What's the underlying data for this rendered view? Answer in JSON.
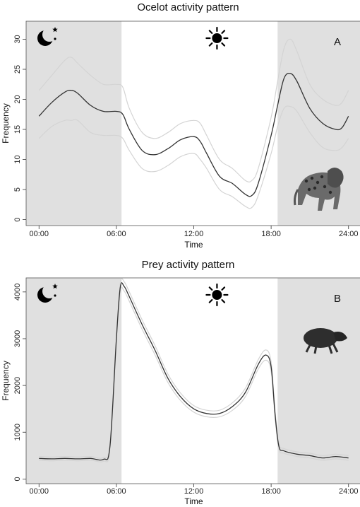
{
  "chart_data": [
    {
      "type": "line",
      "panel_label": "A",
      "title": "Ocelot activity pattern",
      "xlabel": "Time",
      "ylabel": "Frequency",
      "xlim": [
        -1,
        25
      ],
      "ylim": [
        -1,
        33
      ],
      "x_ticks": [
        0,
        6,
        12,
        18,
        24
      ],
      "x_tick_labels": [
        "00:00",
        "06:00",
        "12:00",
        "18:00",
        "24:00"
      ],
      "y_ticks": [
        0,
        5,
        10,
        15,
        20,
        25,
        30
      ],
      "y_tick_labels": [
        "0",
        "5",
        "10",
        "15",
        "20",
        "25",
        "30"
      ],
      "night_periods": [
        [
          -1,
          6.4
        ],
        [
          18.5,
          25
        ]
      ],
      "icons": [
        "moon-stars-icon",
        "sun-icon",
        "ocelot-image"
      ],
      "colors": {
        "night_shade": "#e0e0e0",
        "line": "#333333",
        "ci": "#d4d4d4"
      },
      "series": [
        {
          "role": "estimate",
          "x": [
            0,
            1,
            2,
            2.5,
            3,
            4,
            5,
            6,
            6.5,
            7,
            8,
            9,
            10,
            11,
            12,
            12.5,
            13,
            14,
            15,
            16,
            16.5,
            17,
            18,
            18.5,
            19,
            19.5,
            20,
            21,
            22,
            23,
            23.5,
            24
          ],
          "values": [
            17.2,
            19.5,
            21.2,
            21.5,
            21,
            19,
            18,
            18,
            17.5,
            15,
            11.5,
            10.8,
            11.8,
            13.3,
            13.8,
            13,
            11,
            7.2,
            6,
            4.2,
            4,
            6,
            14,
            19,
            23.5,
            24.3,
            23,
            18.5,
            16,
            15,
            15.3,
            17.2
          ]
        },
        {
          "role": "upper",
          "x": [
            0,
            1,
            2,
            2.5,
            3,
            4,
            5,
            6,
            6.5,
            7,
            8,
            9,
            10,
            11,
            12,
            12.5,
            13,
            14,
            15,
            16,
            16.5,
            17,
            18,
            18.5,
            19,
            19.5,
            20,
            21,
            22,
            23,
            23.5,
            24
          ],
          "values": [
            21.5,
            24,
            26.5,
            27,
            26,
            24,
            22.5,
            22.5,
            22,
            18.5,
            14.5,
            13.5,
            14.5,
            16,
            16.5,
            16,
            14,
            10,
            8.5,
            6.5,
            6.5,
            8.5,
            17,
            23,
            28.5,
            30,
            28,
            22.5,
            20,
            19,
            19.5,
            21.5
          ]
        },
        {
          "role": "lower",
          "x": [
            0,
            1,
            2,
            2.5,
            3,
            4,
            5,
            6,
            6.5,
            7,
            8,
            9,
            10,
            11,
            12,
            12.5,
            13,
            14,
            15,
            16,
            16.5,
            17,
            18,
            18.5,
            19,
            19.5,
            20,
            21,
            22,
            23,
            23.5,
            24
          ],
          "values": [
            13.5,
            15.5,
            16.5,
            16.5,
            16.5,
            14.5,
            14,
            14,
            13.5,
            11.5,
            8.5,
            8,
            9,
            10.5,
            11,
            10,
            8.5,
            5,
            3.8,
            2.2,
            2,
            4,
            11,
            15.5,
            18.5,
            18.8,
            18,
            14.5,
            12,
            11.5,
            12,
            13.5
          ]
        }
      ]
    },
    {
      "type": "line",
      "panel_label": "B",
      "title": "Prey activity pattern",
      "xlabel": "Time",
      "ylabel": "Frequency",
      "xlim": [
        -1,
        25
      ],
      "ylim": [
        -100,
        4300
      ],
      "x_ticks": [
        0,
        6,
        12,
        18,
        24
      ],
      "x_tick_labels": [
        "00:00",
        "06:00",
        "12:00",
        "18:00",
        "24:00"
      ],
      "y_ticks": [
        0,
        1000,
        2000,
        3000,
        4000
      ],
      "y_tick_labels": [
        "0",
        "1000",
        "2000",
        "3000",
        "4000"
      ],
      "night_periods": [
        [
          -1,
          6.4
        ],
        [
          18.5,
          25
        ]
      ],
      "icons": [
        "moon-stars-icon",
        "sun-icon",
        "prey-image"
      ],
      "colors": {
        "night_shade": "#e0e0e0",
        "line": "#333333",
        "ci": "#d4d4d4"
      },
      "series": [
        {
          "role": "estimate",
          "x": [
            0,
            1,
            2,
            3,
            4,
            5,
            5.5,
            6,
            6.3,
            6.6,
            7,
            8,
            9,
            10,
            11,
            12,
            13,
            14,
            15,
            16,
            17,
            17.6,
            18,
            18.3,
            18.6,
            19,
            20,
            21,
            22,
            23,
            24
          ],
          "values": [
            440,
            430,
            440,
            430,
            440,
            420,
            700,
            3000,
            4100,
            4120,
            3900,
            3300,
            2750,
            2150,
            1750,
            1500,
            1400,
            1400,
            1550,
            1850,
            2450,
            2650,
            2400,
            1400,
            700,
            600,
            530,
            500,
            450,
            480,
            450
          ]
        },
        {
          "role": "upper",
          "x": [
            0,
            1,
            2,
            3,
            4,
            5,
            5.5,
            6,
            6.3,
            6.6,
            7,
            8,
            9,
            10,
            11,
            12,
            13,
            14,
            15,
            16,
            17,
            17.6,
            18,
            18.3,
            18.6,
            19,
            20,
            21,
            22,
            23,
            24
          ],
          "values": [
            480,
            470,
            480,
            470,
            480,
            460,
            760,
            3080,
            4190,
            4220,
            4000,
            3400,
            2850,
            2240,
            1830,
            1570,
            1470,
            1470,
            1630,
            1940,
            2550,
            2760,
            2500,
            1480,
            760,
            650,
            580,
            550,
            500,
            530,
            500
          ]
        },
        {
          "role": "lower",
          "x": [
            0,
            1,
            2,
            3,
            4,
            5,
            5.5,
            6,
            6.3,
            6.6,
            7,
            8,
            9,
            10,
            11,
            12,
            13,
            14,
            15,
            16,
            17,
            17.6,
            18,
            18.3,
            18.6,
            19,
            20,
            21,
            22,
            23,
            24
          ],
          "values": [
            400,
            390,
            400,
            390,
            400,
            380,
            640,
            2920,
            4010,
            4020,
            3800,
            3200,
            2650,
            2060,
            1670,
            1430,
            1330,
            1330,
            1470,
            1760,
            2350,
            2540,
            2300,
            1320,
            640,
            550,
            480,
            450,
            400,
            430,
            400
          ]
        }
      ]
    }
  ]
}
